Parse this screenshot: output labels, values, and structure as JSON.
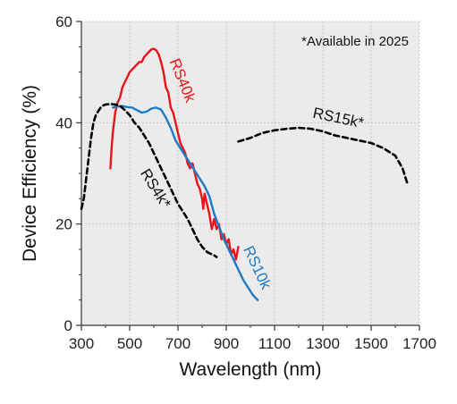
{
  "chart_data": {
    "type": "line",
    "xlabel": "Wavelength (nm)",
    "ylabel": "Device Efficiency (%)",
    "xlim": [
      300,
      1700
    ],
    "ylim": [
      0,
      60
    ],
    "xticks": [
      "300",
      "500",
      "700",
      "900",
      "1100",
      "1300",
      "1500",
      "1700"
    ],
    "yticks": [
      "0",
      "20",
      "40",
      "60"
    ],
    "grid": true,
    "annotation": "*Available in 2025",
    "series": [
      {
        "name": "RS40k",
        "color": "#e8141b",
        "dash": "solid",
        "label_at": [
          700,
          48
        ],
        "label_rotation": 68,
        "x": [
          420,
          425,
          430,
          440,
          450,
          460,
          470,
          480,
          490,
          500,
          510,
          520,
          530,
          540,
          550,
          560,
          570,
          580,
          590,
          600,
          610,
          620,
          630,
          640,
          650,
          660,
          670,
          680,
          690,
          700,
          710,
          720,
          730,
          740,
          750,
          760,
          770,
          780,
          790,
          800,
          805,
          810,
          820,
          830,
          840,
          850,
          860,
          870,
          880,
          890,
          900,
          910,
          920,
          930,
          940,
          950
        ],
        "y": [
          31,
          35,
          38,
          42,
          44,
          45,
          47,
          48,
          49,
          50,
          50.5,
          51,
          51.5,
          52,
          52,
          53,
          53.5,
          54,
          54.5,
          54.6,
          54.3,
          53.5,
          52,
          50,
          47,
          46,
          43,
          42,
          40,
          38,
          36,
          35,
          34,
          32,
          31,
          32,
          30,
          28,
          27,
          25,
          23,
          26,
          24,
          22,
          19,
          21,
          19,
          20,
          17,
          18,
          16,
          17,
          14,
          15,
          13,
          15.5
        ]
      },
      {
        "name": "RS10k",
        "color": "#1f7bc4",
        "dash": "solid",
        "label_at": [
          1010,
          11
        ],
        "label_rotation": 65,
        "x": [
          430,
          450,
          470,
          490,
          510,
          530,
          550,
          570,
          590,
          610,
          630,
          650,
          670,
          690,
          710,
          730,
          750,
          770,
          790,
          810,
          830,
          850,
          870,
          890,
          910,
          930,
          950,
          970,
          990,
          1010,
          1030
        ],
        "y": [
          43,
          43.2,
          43.3,
          43.1,
          43,
          42.5,
          42,
          42.2,
          42.8,
          43,
          42.6,
          41,
          39,
          36.5,
          35,
          33.5,
          32,
          30.5,
          29,
          27.5,
          25.5,
          22,
          19.5,
          17,
          15,
          13,
          11,
          9,
          7.5,
          6,
          5
        ]
      },
      {
        "name": "RS4k*",
        "color": "#000000",
        "dash": "dashed",
        "label_at": [
          590,
          26.5
        ],
        "label_rotation": 58,
        "x": [
          300,
          310,
          320,
          330,
          340,
          350,
          360,
          370,
          380,
          390,
          400,
          420,
          440,
          460,
          480,
          500,
          520,
          540,
          560,
          580,
          600,
          620,
          640,
          660,
          680,
          700,
          720,
          740,
          760,
          780,
          800,
          820,
          840,
          850,
          860
        ],
        "y": [
          23,
          25,
          29,
          33,
          37,
          40,
          41.5,
          42.3,
          43,
          43.4,
          43.6,
          43.7,
          43.6,
          43.3,
          42.5,
          41.5,
          40,
          39,
          37.5,
          36,
          34,
          32,
          30,
          28,
          26,
          24,
          22.5,
          21,
          19,
          17,
          15.5,
          14.5,
          14,
          13.8,
          13.5
        ]
      },
      {
        "name": "RS15k*",
        "color": "#000000",
        "dash": "dashed",
        "label_at": [
          1360,
          40
        ],
        "label_rotation": 12,
        "x": [
          950,
          1000,
          1050,
          1100,
          1150,
          1200,
          1250,
          1300,
          1350,
          1400,
          1450,
          1500,
          1550,
          1600,
          1630,
          1650
        ],
        "y": [
          36.3,
          37,
          38,
          38.5,
          38.8,
          39,
          38.8,
          38.3,
          37.5,
          37,
          36.5,
          36,
          35,
          33.5,
          31,
          28
        ]
      }
    ]
  }
}
